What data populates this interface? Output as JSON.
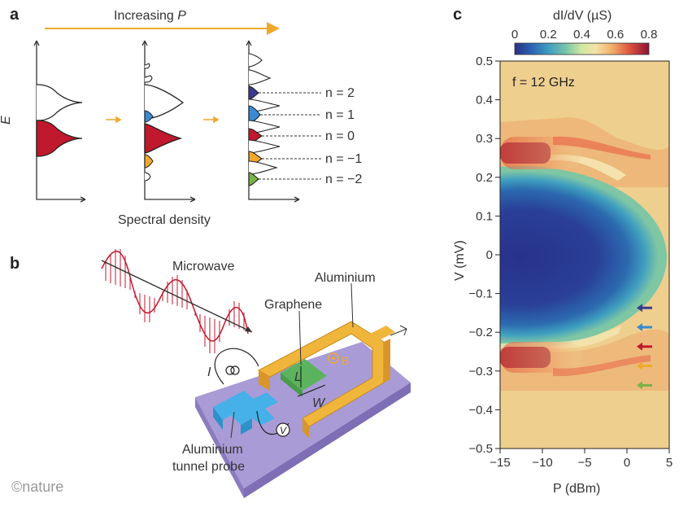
{
  "panel_a": {
    "letter": "a",
    "title_prefix": "Increasing ",
    "title_var": "P",
    "y_axis": "E",
    "x_axis": "Spectral density",
    "n_labels": [
      "n = 2",
      "n = 1",
      "n = 0",
      "n = −1",
      "n = −2"
    ]
  },
  "panel_b": {
    "letter": "b",
    "microwave": "Microwave",
    "graphene": "Graphene",
    "aluminium": "Aluminium",
    "probe_line1": "Aluminium",
    "probe_line2": "tunnel probe",
    "current": "I",
    "voltage": "V",
    "length": "L",
    "width": "W",
    "field": "B"
  },
  "panel_c": {
    "letter": "c",
    "annotation": "f = 12 GHz"
  },
  "watermark": "©nature",
  "colors": {
    "red": "#c0182c",
    "blue": "#3a8bd1",
    "navy": "#3a3a8e",
    "orange": "#f0a92b",
    "green": "#77b347",
    "arrow": "#f0a92b",
    "substrate": "#a99bd6",
    "gold": "#f0b63c",
    "graphene": "#5bb45d",
    "probe": "#46b1e8"
  },
  "chart_data": {
    "type": "heatmap",
    "title": "",
    "colorbar_label": "dI/dV (µS)",
    "colorbar_ticks": [
      "0",
      "0.2",
      "0.4",
      "0.6",
      "0.8"
    ],
    "colorbar_range": [
      0,
      0.8
    ],
    "xlabel": "P (dBm)",
    "ylabel": "V (mV)",
    "x_ticks": [
      "−15",
      "−10",
      "−5",
      "0",
      "5"
    ],
    "x_tick_values": [
      -15,
      -10,
      -5,
      0,
      5
    ],
    "y_ticks": [
      "0.5",
      "0.4",
      "0.3",
      "0.2",
      "0.1",
      "0",
      "−0.1",
      "−0.2",
      "−0.3",
      "−0.4",
      "−0.5"
    ],
    "y_tick_values": [
      0.5,
      0.4,
      0.3,
      0.2,
      0.1,
      0,
      -0.1,
      -0.2,
      -0.3,
      -0.4,
      -0.5
    ],
    "xlim": [
      -15,
      5
    ],
    "ylim": [
      -0.5,
      0.5
    ],
    "gap_edge_mV": 0.23,
    "coherence_peak_mV": 0.265,
    "gap_closes_at_dBm": 1,
    "peak_conductance_uS": 0.8,
    "gap_conductance_uS": 0.02,
    "sideband_markers_mV": [
      -0.137,
      -0.187,
      -0.237,
      -0.287,
      -0.337
    ],
    "sideband_marker_colors": [
      "#3a3a8e",
      "#3a8bd1",
      "#c0182c",
      "#f0a92b",
      "#77b347"
    ]
  }
}
